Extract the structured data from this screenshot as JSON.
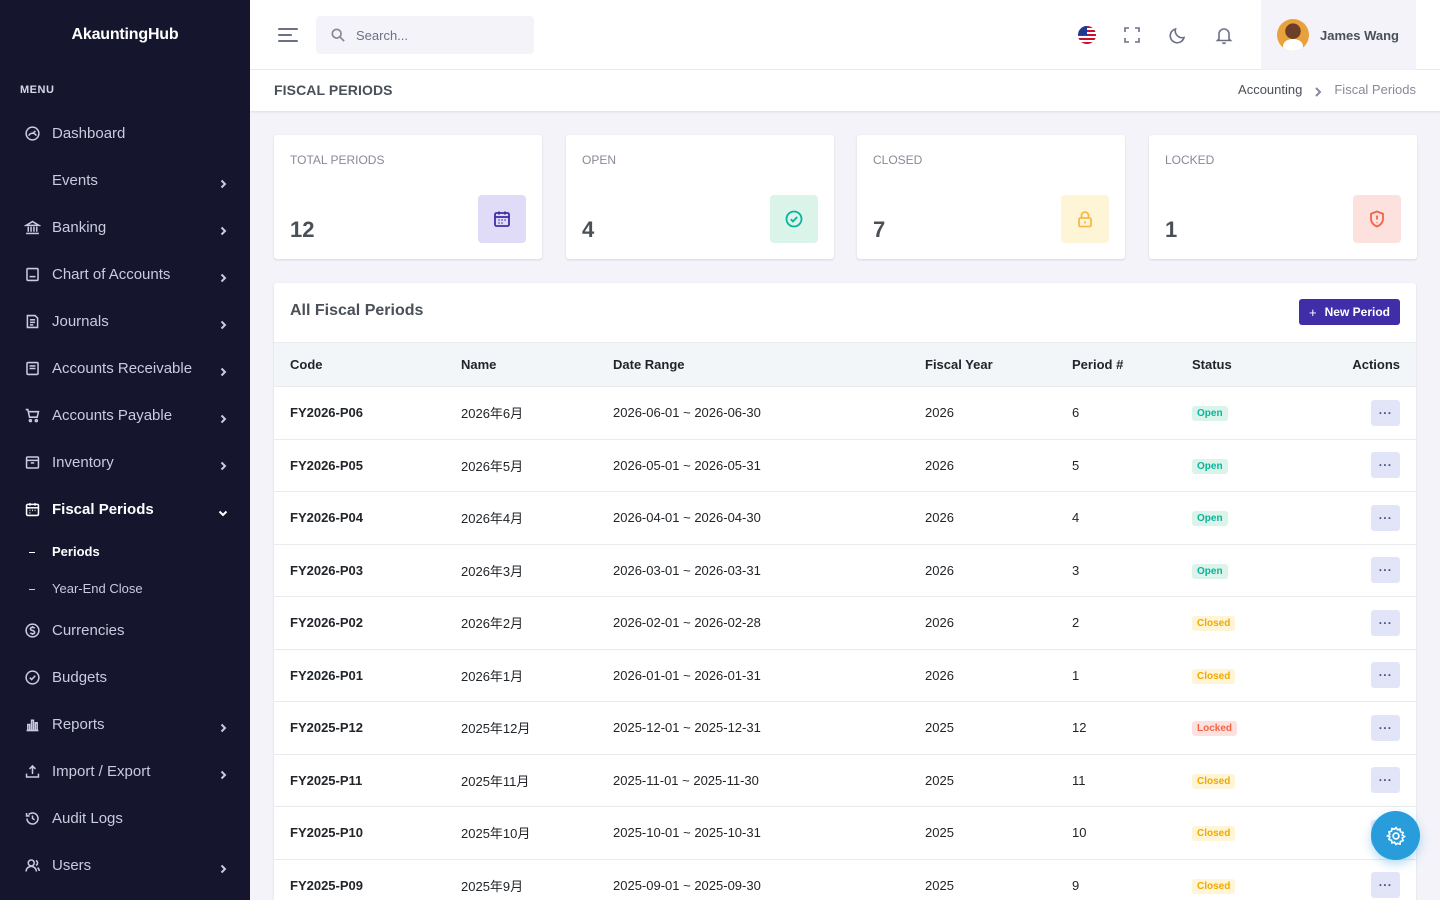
{
  "app": {
    "brand": "AkauntingHub"
  },
  "sidebar": {
    "menu_title": "MENU",
    "items": [
      {
        "label": "Dashboard",
        "icon": "dashboard-icon",
        "has_children": false
      },
      {
        "label": "Events",
        "icon": "",
        "has_children": true
      },
      {
        "label": "Banking",
        "icon": "bank-icon",
        "has_children": true
      },
      {
        "label": "Chart of Accounts",
        "icon": "ledger-icon",
        "has_children": true
      },
      {
        "label": "Journals",
        "icon": "journal-icon",
        "has_children": true
      },
      {
        "label": "Accounts Receivable",
        "icon": "receivable-icon",
        "has_children": true
      },
      {
        "label": "Accounts Payable",
        "icon": "cart-icon",
        "has_children": true
      },
      {
        "label": "Inventory",
        "icon": "inventory-icon",
        "has_children": true
      },
      {
        "label": "Fiscal Periods",
        "icon": "calendar-icon",
        "has_children": true,
        "expanded": true
      },
      {
        "label": "Currencies",
        "icon": "currency-icon",
        "has_children": false
      },
      {
        "label": "Budgets",
        "icon": "budget-icon",
        "has_children": false
      },
      {
        "label": "Reports",
        "icon": "bar-chart-icon",
        "has_children": true
      },
      {
        "label": "Import / Export",
        "icon": "upload-icon",
        "has_children": true
      },
      {
        "label": "Audit Logs",
        "icon": "history-icon",
        "has_children": false
      },
      {
        "label": "Users",
        "icon": "user-icon",
        "has_children": true
      }
    ],
    "fiscal_sub": [
      {
        "label": "Periods",
        "active": true
      },
      {
        "label": "Year-End Close",
        "active": false
      }
    ]
  },
  "topbar": {
    "search_placeholder": "Search...",
    "user_name": "James Wang",
    "icons": [
      "us-flag-icon",
      "fullscreen-icon",
      "moon-icon",
      "bell-icon"
    ]
  },
  "page": {
    "title": "FISCAL PERIODS",
    "breadcrumb": [
      "Accounting",
      "Fiscal Periods"
    ]
  },
  "stats": [
    {
      "label": "TOTAL PERIODS",
      "value": "12",
      "icon": "calendar-icon",
      "bg": "#e0dcf7",
      "color": "#3f2ea8"
    },
    {
      "label": "OPEN",
      "value": "4",
      "icon": "check-circle-icon",
      "bg": "#daf4ea",
      "color": "#0ab39c"
    },
    {
      "label": "CLOSED",
      "value": "7",
      "icon": "lock-icon",
      "bg": "#fef4d6",
      "color": "#f7b84b"
    },
    {
      "label": "LOCKED",
      "value": "1",
      "icon": "shield-alert-icon",
      "bg": "#fde1de",
      "color": "#f06548"
    }
  ],
  "table": {
    "title": "All Fiscal Periods",
    "new_button": "New Period",
    "action_label": "···",
    "columns": [
      "Code",
      "Name",
      "Date Range",
      "Fiscal Year",
      "Period #",
      "Status",
      "Actions"
    ],
    "rows": [
      {
        "code": "FY2026-P06",
        "name": "2026年6月",
        "range": "2026-06-01 ~ 2026-06-30",
        "year": "2026",
        "period": "6",
        "status": "Open"
      },
      {
        "code": "FY2026-P05",
        "name": "2026年5月",
        "range": "2026-05-01 ~ 2026-05-31",
        "year": "2026",
        "period": "5",
        "status": "Open"
      },
      {
        "code": "FY2026-P04",
        "name": "2026年4月",
        "range": "2026-04-01 ~ 2026-04-30",
        "year": "2026",
        "period": "4",
        "status": "Open"
      },
      {
        "code": "FY2026-P03",
        "name": "2026年3月",
        "range": "2026-03-01 ~ 2026-03-31",
        "year": "2026",
        "period": "3",
        "status": "Open"
      },
      {
        "code": "FY2026-P02",
        "name": "2026年2月",
        "range": "2026-02-01 ~ 2026-02-28",
        "year": "2026",
        "period": "2",
        "status": "Closed"
      },
      {
        "code": "FY2026-P01",
        "name": "2026年1月",
        "range": "2026-01-01 ~ 2026-01-31",
        "year": "2026",
        "period": "1",
        "status": "Closed"
      },
      {
        "code": "FY2025-P12",
        "name": "2025年12月",
        "range": "2025-12-01 ~ 2025-12-31",
        "year": "2025",
        "period": "12",
        "status": "Locked"
      },
      {
        "code": "FY2025-P11",
        "name": "2025年11月",
        "range": "2025-11-01 ~ 2025-11-30",
        "year": "2025",
        "period": "11",
        "status": "Closed"
      },
      {
        "code": "FY2025-P10",
        "name": "2025年10月",
        "range": "2025-10-01 ~ 2025-10-31",
        "year": "2025",
        "period": "10",
        "status": "Closed"
      },
      {
        "code": "FY2025-P09",
        "name": "2025年9月",
        "range": "2025-09-01 ~ 2025-09-30",
        "year": "2025",
        "period": "9",
        "status": "Closed"
      }
    ]
  }
}
